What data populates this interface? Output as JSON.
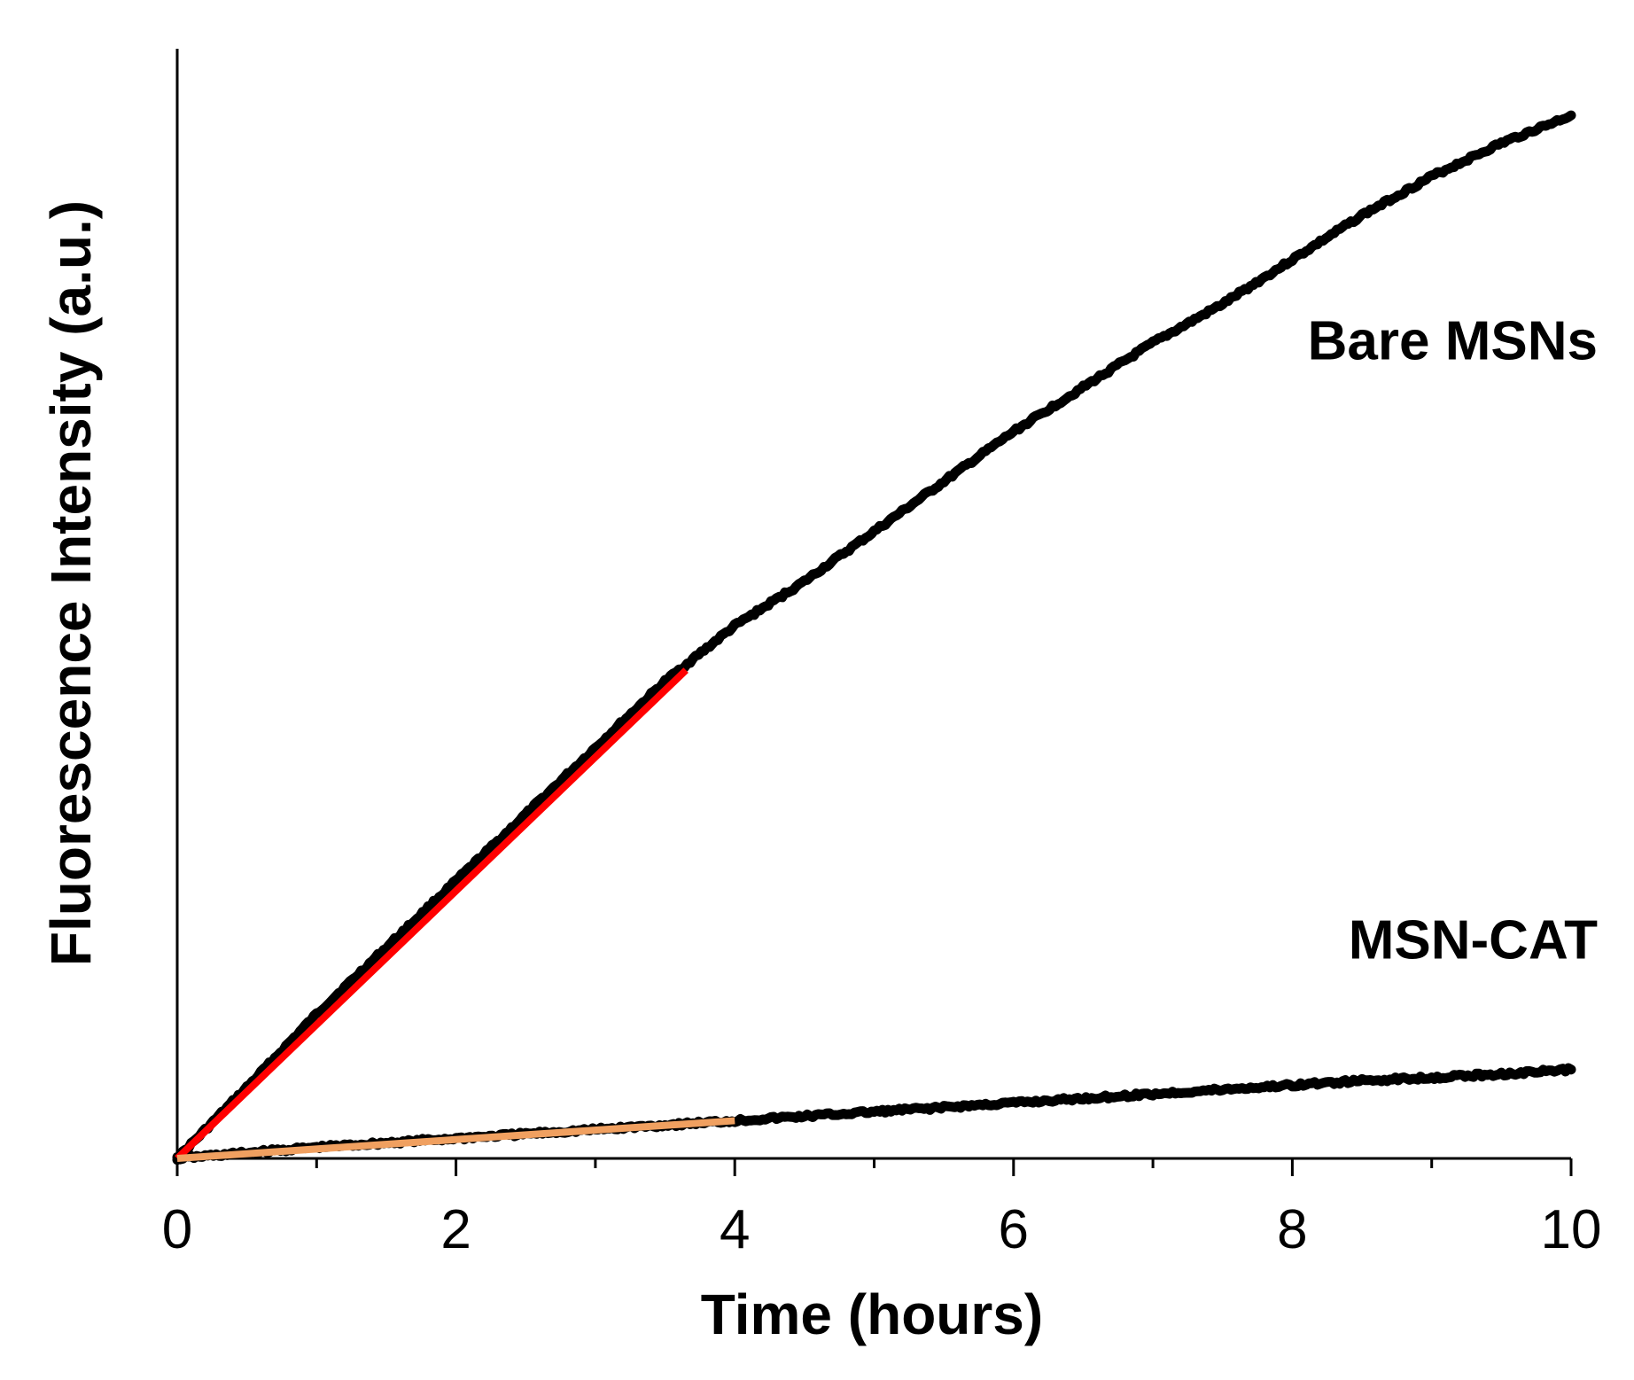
{
  "chart_data": {
    "type": "line",
    "title": "",
    "xlabel": "Time (hours)",
    "ylabel": "Fluorescence Intensity (a.u.)",
    "xlim": [
      0,
      10
    ],
    "ylim": [
      0,
      1.0
    ],
    "x_ticks": [
      "0",
      "2",
      "4",
      "6",
      "8",
      "10"
    ],
    "x_tick_values": [
      0,
      2,
      4,
      6,
      8,
      10
    ],
    "y_ticks_shown": false,
    "grid": false,
    "legend": "none",
    "series": [
      {
        "name": "Bare MSNs",
        "color": "#000000",
        "x": [
          0,
          0.5,
          1,
          1.5,
          2,
          2.5,
          3,
          3.5,
          4,
          4.5,
          5,
          5.5,
          6,
          6.5,
          7,
          7.5,
          8,
          8.5,
          9,
          9.5,
          10
        ],
        "y": [
          0,
          0.064,
          0.13,
          0.19,
          0.25,
          0.31,
          0.37,
          0.43,
          0.48,
          0.52,
          0.565,
          0.61,
          0.655,
          0.695,
          0.735,
          0.77,
          0.81,
          0.85,
          0.885,
          0.915,
          0.94
        ]
      },
      {
        "name": "MSN-CAT",
        "color": "#000000",
        "x": [
          0,
          0.5,
          1,
          1.5,
          2,
          2.5,
          3,
          3.5,
          4,
          4.5,
          5,
          5.5,
          6,
          6.5,
          7,
          7.5,
          8,
          8.5,
          9,
          9.5,
          10
        ],
        "y": [
          0,
          0.005,
          0.01,
          0.014,
          0.018,
          0.022,
          0.026,
          0.03,
          0.034,
          0.038,
          0.042,
          0.046,
          0.05,
          0.054,
          0.058,
          0.062,
          0.066,
          0.07,
          0.073,
          0.076,
          0.08
        ]
      }
    ],
    "fit_lines": [
      {
        "color": "#ff0000",
        "x": [
          0,
          3.65
        ],
        "y": [
          0,
          0.44
        ]
      },
      {
        "color": "#f0a060",
        "x": [
          0,
          4.0
        ],
        "y": [
          0,
          0.034
        ]
      }
    ],
    "annotations": [
      {
        "text": "Bare MSNs",
        "x": 10,
        "y": 0.72
      },
      {
        "text": "MSN-CAT",
        "x": 10,
        "y": 0.18
      }
    ]
  }
}
